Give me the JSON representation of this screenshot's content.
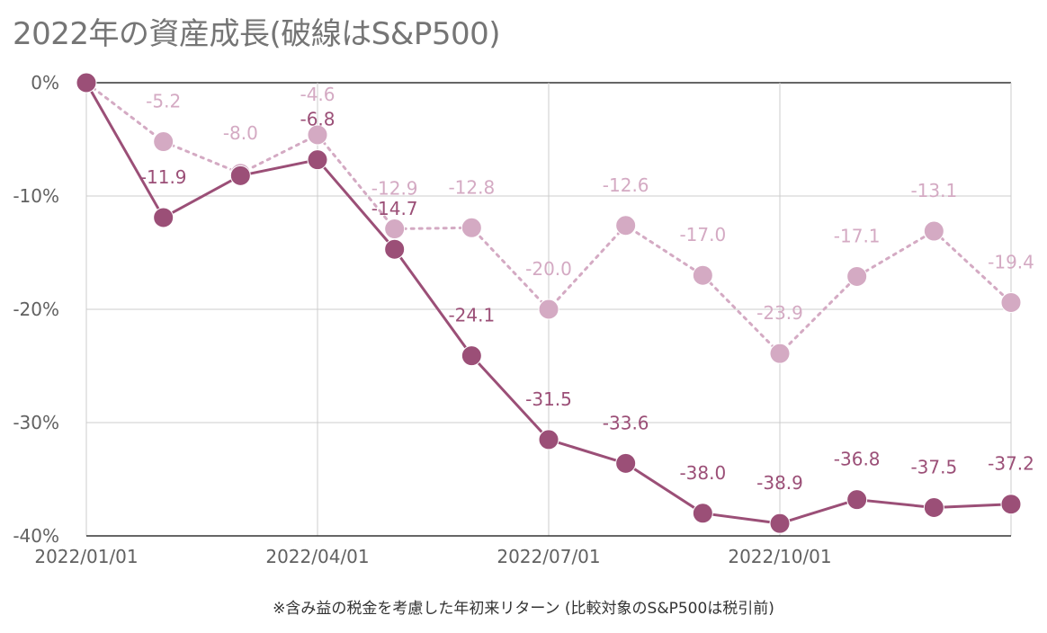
{
  "title": "2022年の資産成長(破線はS&P500)",
  "footnote": "※含み益の税金を考慮した年初来リターン (比較対象のS&P500は税引前)",
  "colors": {
    "portfolio": "#9b4f77",
    "sp500": "#d4aac3",
    "grid": "#cccccc",
    "zero_line": "#333333",
    "axis_text": "#616161"
  },
  "chart_data": {
    "type": "line",
    "title": "2022年の資産成長(破線はS&P500)",
    "xlabel": "",
    "ylabel": "",
    "ylim": [
      -40,
      0
    ],
    "y_ticks": [
      "0%",
      "-10%",
      "-20%",
      "-30%",
      "-40%"
    ],
    "y_tick_values": [
      0,
      -10,
      -20,
      -30,
      -40
    ],
    "x_ticks": [
      "2022/01/01",
      "2022/04/01",
      "2022/07/01",
      "2022/10/01"
    ],
    "x_tick_indices": [
      0,
      3,
      6,
      9
    ],
    "grid": true,
    "series": [
      {
        "style": "solid",
        "values": [
          0,
          -11.9,
          -8.2,
          -6.8,
          -14.7,
          -24.1,
          -31.5,
          -33.6,
          -38.0,
          -38.9,
          -36.8,
          -37.5,
          -37.2
        ],
        "labels": [
          "",
          "-11.9",
          "",
          "-6.8",
          "-14.7",
          "-24.1",
          "-31.5",
          "-33.6",
          "-38.0",
          "-38.9",
          "-36.8",
          "-37.5",
          "-37.2"
        ]
      },
      {
        "style": "dotted",
        "values": [
          0,
          -5.2,
          -8.0,
          -4.6,
          -12.9,
          -12.8,
          -20.0,
          -12.6,
          -17.0,
          -23.9,
          -17.1,
          -13.1,
          -19.4
        ],
        "labels": [
          "",
          "-5.2",
          "-8.0",
          "-4.6",
          "-12.9",
          "-12.8",
          "-20.0",
          "-12.6",
          "-17.0",
          "-23.9",
          "-17.1",
          "-13.1",
          "-19.4"
        ]
      }
    ]
  }
}
